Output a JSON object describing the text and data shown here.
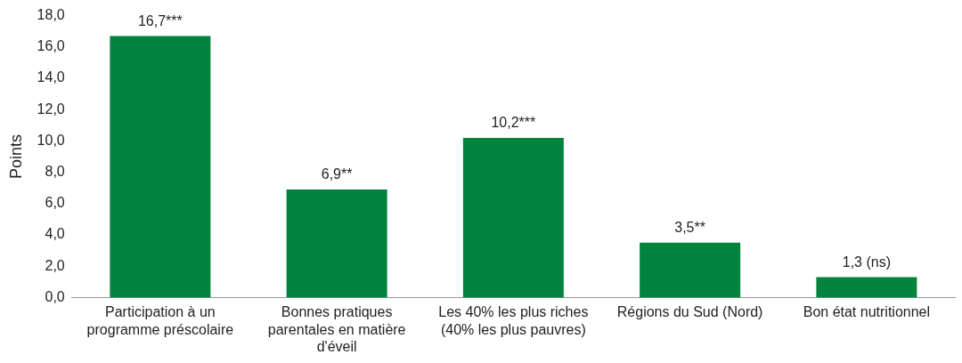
{
  "chart_data": {
    "type": "bar",
    "ylabel": "Points",
    "categories": [
      "Participation à un programme préscolaire",
      "Bonnes pratiques parentales en matière d'éveil",
      "Les 40% les plus riches (40% les plus pauvres)",
      "Régions du Sud (Nord)",
      "Bon état nutritionnel"
    ],
    "values": [
      16.7,
      6.9,
      10.2,
      3.5,
      1.3
    ],
    "value_labels": [
      "16,7***",
      "6,9**",
      "10,2***",
      "3,5**",
      "1,3 (ns)"
    ],
    "color": "#00843d",
    "ylim": [
      0,
      18
    ],
    "yticks": [
      {
        "value": 0,
        "label": "0,0"
      },
      {
        "value": 2,
        "label": "2,0"
      },
      {
        "value": 4,
        "label": "4,0"
      },
      {
        "value": 6,
        "label": "6,0"
      },
      {
        "value": 8,
        "label": "8,0"
      },
      {
        "value": 10,
        "label": "10,0"
      },
      {
        "value": 12,
        "label": "12,0"
      },
      {
        "value": 14,
        "label": "14,0"
      },
      {
        "value": 16,
        "label": "16,0"
      },
      {
        "value": 18,
        "label": "18,0"
      }
    ],
    "grid": false,
    "legend": false
  }
}
